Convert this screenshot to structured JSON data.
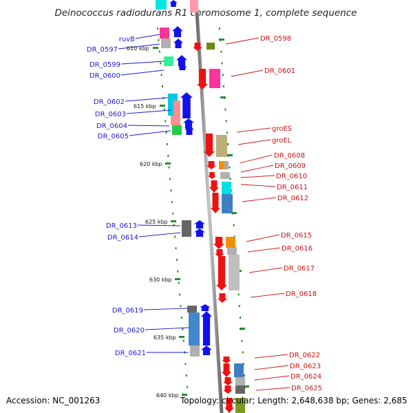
{
  "title": "Deinococcus radiodurans R1 chromosome 1, complete sequence",
  "accession": "Accession: NC_001263",
  "topology": "Topology: circular; Length: 2,648,638 bp; Genes: 2,685",
  "colors": {
    "plus_strand": "#1111ee",
    "minus_strand": "#ee1111",
    "label_left": "#1a1acc",
    "label_right": "#cc1111",
    "backbone": "#8a8a8a",
    "tick": "#2a8a2a"
  },
  "kbp_ticks": [
    "610 kbp",
    "615 kbp",
    "620 kbp",
    "625 kbp",
    "630 kbp",
    "635 kbp",
    "640 kbp"
  ],
  "left_genes": [
    "ruvB",
    "DR_0597",
    "DR_0599",
    "DR_0600",
    "DR_0602",
    "DR_0603",
    "DR_0604",
    "DR_0605",
    "DR_0613",
    "DR_0614",
    "DR_0619",
    "DR_0620",
    "DR_0621"
  ],
  "right_genes": [
    "DR_0598",
    "DR_0601",
    "groES",
    "groEL",
    "DR_0608",
    "DR_0609",
    "DR_0610",
    "DR_0611",
    "DR_0612",
    "DR_0615",
    "DR_0616",
    "DR_0617",
    "DR_0618",
    "DR_0622",
    "DR_0623",
    "DR_0624",
    "DR_0625"
  ]
}
